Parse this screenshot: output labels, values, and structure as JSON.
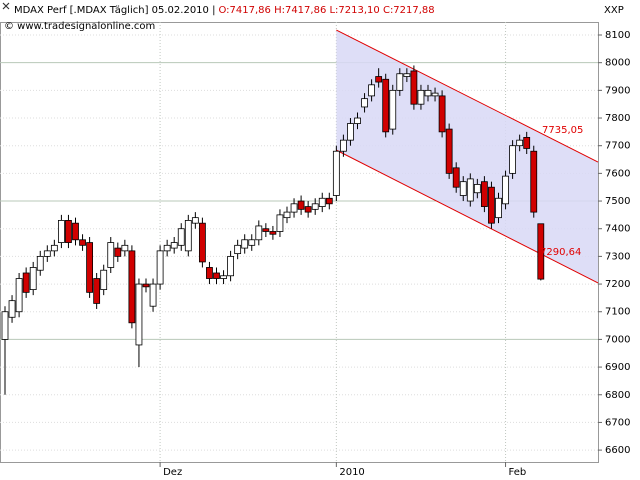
{
  "chart_data": {
    "type": "candlestick",
    "title": "MDAX Perf [.MDAX  Täglich] 05.02.2010 |",
    "title_values": "O:7417,86 H:7417,86 L:7213,10 C:7217,88",
    "subtitle": "© www.tradesignalonline.com",
    "y_label": "XXP",
    "categories": [
      null,
      null,
      null,
      null,
      null,
      null,
      null,
      null,
      null,
      null,
      null,
      null,
      null,
      null,
      null,
      null,
      null,
      null,
      null,
      null,
      null,
      null,
      "Dez",
      null,
      null,
      null,
      null,
      null,
      null,
      null,
      null,
      null,
      null,
      null,
      null,
      null,
      null,
      null,
      null,
      null,
      null,
      null,
      null,
      null,
      null,
      null,
      null,
      "2010",
      null,
      null,
      null,
      null,
      null,
      null,
      null,
      null,
      null,
      null,
      null,
      null,
      null,
      null,
      null,
      null,
      null,
      null,
      null,
      null,
      null,
      null,
      null,
      "Feb",
      null,
      null,
      null,
      null,
      null
    ],
    "open": [
      7000,
      7080,
      7100,
      7240,
      7180,
      7250,
      7300,
      7320,
      7350,
      7430,
      7420,
      7360,
      7350,
      7220,
      7180,
      7260,
      7330,
      7320,
      7320,
      6980,
      7200,
      7120,
      7200,
      7320,
      7330,
      7340,
      7320,
      7420,
      7420,
      7260,
      7240,
      7220,
      7230,
      7310,
      7330,
      7340,
      7360,
      7400,
      7390,
      7390,
      7440,
      7460,
      7500,
      7480,
      7470,
      7480,
      7510,
      7520,
      7680,
      7720,
      7780,
      7840,
      7880,
      7950,
      7940,
      7760,
      7900,
      7950,
      7970,
      7850,
      7880,
      7880,
      7880,
      7760,
      7620,
      7520,
      7500,
      7530,
      7570,
      7550,
      7440,
      7490,
      7600,
      7700,
      7730,
      7680,
      7417.86
    ],
    "high": [
      7120,
      7160,
      7240,
      7260,
      7280,
      7320,
      7340,
      7360,
      7450,
      7450,
      7440,
      7380,
      7370,
      7240,
      7270,
      7370,
      7350,
      7360,
      7340,
      7220,
      7220,
      7220,
      7340,
      7360,
      7370,
      7420,
      7450,
      7460,
      7440,
      7280,
      7260,
      7250,
      7320,
      7360,
      7380,
      7380,
      7430,
      7420,
      7410,
      7470,
      7480,
      7510,
      7520,
      7500,
      7510,
      7530,
      7530,
      7700,
      7740,
      7800,
      7820,
      7890,
      7940,
      7980,
      7960,
      7920,
      7980,
      7980,
      7990,
      7920,
      7920,
      7910,
      7900,
      7780,
      7640,
      7590,
      7600,
      7580,
      7590,
      7570,
      7530,
      7610,
      7720,
      7740,
      7750,
      7700,
      7417.86
    ],
    "low": [
      6800,
      7060,
      7080,
      7150,
      7160,
      7230,
      7280,
      7300,
      7330,
      7330,
      7340,
      7320,
      7150,
      7110,
      7160,
      7240,
      7280,
      7300,
      7040,
      6900,
      7170,
      7100,
      7180,
      7300,
      7310,
      7320,
      7300,
      7400,
      7260,
      7200,
      7200,
      7200,
      7210,
      7290,
      7310,
      7320,
      7340,
      7370,
      7360,
      7370,
      7420,
      7440,
      7450,
      7440,
      7450,
      7460,
      7470,
      7500,
      7660,
      7700,
      7760,
      7820,
      7860,
      7910,
      7730,
      7740,
      7880,
      7930,
      7830,
      7830,
      7860,
      7860,
      7730,
      7580,
      7530,
      7500,
      7480,
      7510,
      7460,
      7400,
      7420,
      7470,
      7580,
      7680,
      7670,
      7440,
      7213.1
    ],
    "close": [
      7100,
      7140,
      7220,
      7170,
      7260,
      7300,
      7320,
      7340,
      7430,
      7350,
      7360,
      7340,
      7170,
      7130,
      7250,
      7350,
      7300,
      7340,
      7060,
      7200,
      7190,
      7200,
      7320,
      7340,
      7350,
      7400,
      7430,
      7440,
      7280,
      7220,
      7220,
      7230,
      7300,
      7340,
      7360,
      7360,
      7410,
      7390,
      7380,
      7450,
      7460,
      7490,
      7470,
      7460,
      7490,
      7510,
      7490,
      7680,
      7720,
      7780,
      7800,
      7870,
      7920,
      7930,
      7750,
      7900,
      7960,
      7960,
      7850,
      7900,
      7900,
      7890,
      7750,
      7600,
      7550,
      7570,
      7580,
      7560,
      7480,
      7420,
      7510,
      7590,
      7700,
      7720,
      7690,
      7460,
      7217.88
    ],
    "up_color": "#ffffff",
    "down_color": "#d00000",
    "ylim": [
      6557,
      8147
    ],
    "yticks": [
      6600,
      6700,
      6800,
      6900,
      7000,
      7100,
      7200,
      7300,
      7400,
      7500,
      7600,
      7700,
      7800,
      7900,
      8000,
      8100
    ],
    "grid": true,
    "channel": {
      "upper": [
        8118,
        7641
      ],
      "lower": [
        7684,
        7204
      ],
      "color": "#e00000",
      "fill": "#d8d8f6",
      "labels": [
        "7735,05",
        "7290,64"
      ]
    }
  }
}
